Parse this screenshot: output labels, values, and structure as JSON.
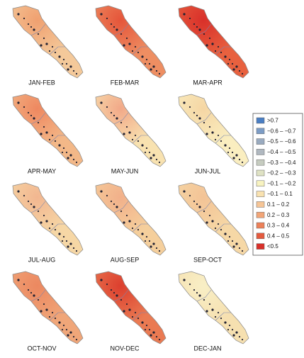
{
  "panels": [
    {
      "label": "JAN-FEB",
      "color": "#f4c99a",
      "hot": "#f0a070"
    },
    {
      "label": "FEB-MAR",
      "color": "#ee8e62",
      "hot": "#e5553a"
    },
    {
      "label": "MAR-APR",
      "color": "#e8613f",
      "hot": "#d9302a"
    },
    {
      "label": "APR-MAY",
      "color": "#f3b888",
      "hot": "#ee8860"
    },
    {
      "label": "MAY-JUN",
      "color": "#f8e2b0",
      "hot": "#f2a888"
    },
    {
      "label": "JUN-JUL",
      "color": "#faeec0",
      "hot": "#f5d6a4"
    },
    {
      "label": "JUL-AUG",
      "color": "#f6d7a5",
      "hot": "#f2b690"
    },
    {
      "label": "AUG-SEP",
      "color": "#f5cf9c",
      "hot": "#f2b08a"
    },
    {
      "label": "SEP-OCT",
      "color": "#f6d8a6",
      "hot": "#f3c396"
    },
    {
      "label": "OCT-NOV",
      "color": "#f0a679",
      "hot": "#ec8860"
    },
    {
      "label": "NOV-DEC",
      "color": "#ea7a52",
      "hot": "#dc3f2e"
    },
    {
      "label": "DEC-JAN",
      "color": "#f6e0b0",
      "hot": "#f8efc6"
    }
  ],
  "legend": [
    {
      "label": ">0.7",
      "color": "#4a7fc4"
    },
    {
      "label": "−0.6 – −0.7",
      "color": "#7d9dc6"
    },
    {
      "label": "−0.5 – −0.6",
      "color": "#9aabc0"
    },
    {
      "label": "−0.4 – −0.5",
      "color": "#b0b8c0"
    },
    {
      "label": "−0.3 – −0.4",
      "color": "#c6ccc0"
    },
    {
      "label": "−0.2 – −0.3",
      "color": "#dfe2c4"
    },
    {
      "label": "−0.1 – −0.2",
      "color": "#f8f3c0"
    },
    {
      "label": "−0.1 – 0.1",
      "color": "#f9e2b0"
    },
    {
      "label": "0.1 – 0.2",
      "color": "#f6c596"
    },
    {
      "label": "0.2 – 0.3",
      "color": "#f2a577"
    },
    {
      "label": "0.3 – 0.4",
      "color": "#ec8058"
    },
    {
      "label": "0.4 – 0.5",
      "color": "#e45a3e"
    },
    {
      "label": "<0.5",
      "color": "#d8302a"
    }
  ]
}
